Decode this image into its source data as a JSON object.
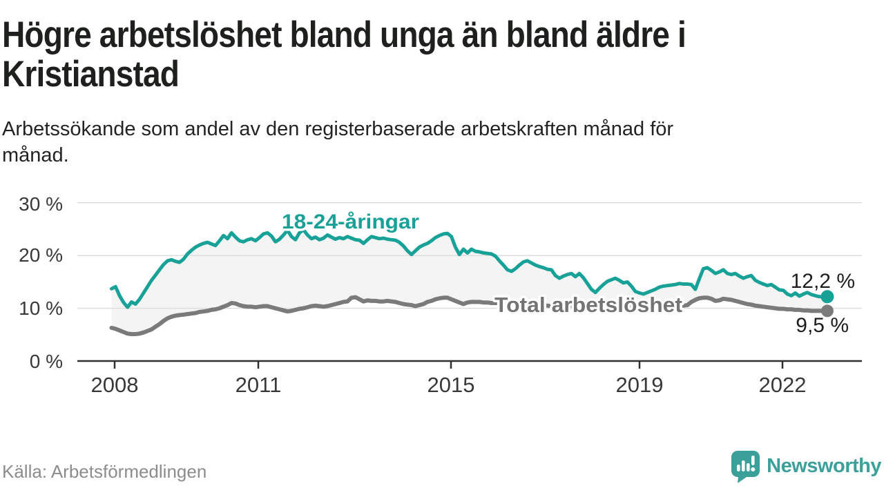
{
  "page": {
    "title": {
      "line1": "Högre arbetslöshet bland unga än bland äldre i",
      "line2": "Kristianstad"
    },
    "subtitle": {
      "line1": "Arbetssökande som andel av den registerbaserade arbetskraften månad för",
      "line2": "månad."
    },
    "source": "Källa: Arbetsförmedlingen",
    "brand": {
      "name": "Newsworthy",
      "color": "#3ba09a"
    }
  },
  "chart_data": {
    "type": "line",
    "title": "Högre arbetslöshet bland unga än bland äldre i Kristianstad",
    "subtitle": "Arbetssökande som andel av den registerbaserade arbetskraften månad för månad.",
    "x_unit": "month",
    "x_start": "2008-01",
    "x_end": "2022-12",
    "ylim": [
      0,
      32
    ],
    "y_ticks": [
      0,
      10,
      20,
      30
    ],
    "y_tick_labels": [
      "0 %",
      "10 %",
      "20 %",
      "30 %"
    ],
    "x_ticks": [
      2008,
      2011,
      2015,
      2019,
      2022
    ],
    "x_tick_labels": [
      "2008",
      "2011",
      "2015",
      "2019",
      "2022"
    ],
    "grid": "horizontal",
    "legend": "inline-labels",
    "colors": {
      "youth": "#17a197",
      "total": "#7a7a7a",
      "band_fill": "#f4f4f4",
      "gridline": "#dedede",
      "axis": "#2e2e2e",
      "annotation": "#1d1d1d"
    },
    "series": [
      {
        "id": "youth",
        "name": "18-24-åringar",
        "end_label": "12,2 %",
        "end_value": 12.2,
        "color": "#17a197",
        "values": [
          13.7,
          14.1,
          12.4,
          11.1,
          10.2,
          11.2,
          10.8,
          11.7,
          12.9,
          14.1,
          15.3,
          16.3,
          17.3,
          18.3,
          19.0,
          19.2,
          18.9,
          18.7,
          19.3,
          20.3,
          21.0,
          21.6,
          22.0,
          22.3,
          22.5,
          22.2,
          21.9,
          22.8,
          23.8,
          23.2,
          24.3,
          23.5,
          22.8,
          22.6,
          23.0,
          23.2,
          22.8,
          23.4,
          24.1,
          24.3,
          23.7,
          22.6,
          23.1,
          23.9,
          24.8,
          23.6,
          23.0,
          24.3,
          24.9,
          23.9,
          23.2,
          23.5,
          23.0,
          23.3,
          23.9,
          23.5,
          23.1,
          23.4,
          23.2,
          23.6,
          23.3,
          23.0,
          22.9,
          22.3,
          23.0,
          23.6,
          23.4,
          23.2,
          23.3,
          23.1,
          23.0,
          22.9,
          22.5,
          21.8,
          20.9,
          20.2,
          20.9,
          21.6,
          22.0,
          22.3,
          22.8,
          23.4,
          23.8,
          24.1,
          24.2,
          23.6,
          21.6,
          20.2,
          21.2,
          20.5,
          21.2,
          20.8,
          20.7,
          20.5,
          20.4,
          20.3,
          19.9,
          19.0,
          18.2,
          17.3,
          17.0,
          17.5,
          18.2,
          18.8,
          19.0,
          18.6,
          18.2,
          17.9,
          17.7,
          17.4,
          17.3,
          16.2,
          15.7,
          16.1,
          16.4,
          16.6,
          16.0,
          16.6,
          15.8,
          14.7,
          13.6,
          13.0,
          13.8,
          14.5,
          15.1,
          15.4,
          15.7,
          15.3,
          14.8,
          15.0,
          14.2,
          13.2,
          12.9,
          12.7,
          13.0,
          13.3,
          13.6,
          14.0,
          14.2,
          14.3,
          14.4,
          14.5,
          14.7,
          14.6,
          14.6,
          14.5,
          13.6,
          15.6,
          17.5,
          17.7,
          17.2,
          16.6,
          16.9,
          17.3,
          16.6,
          16.4,
          16.6,
          16.1,
          15.7,
          16.0,
          16.2,
          15.3,
          14.9,
          14.6,
          14.3,
          14.5,
          14.0,
          13.5,
          13.4,
          12.7,
          12.4,
          12.9,
          12.3,
          12.7,
          13.0,
          12.6,
          12.4,
          12.2,
          12.2,
          12.2
        ]
      },
      {
        "id": "total",
        "name": "Total arbetslöshet",
        "end_label": "9,5 %",
        "end_value": 9.5,
        "color": "#7a7a7a",
        "values": [
          6.3,
          6.1,
          5.8,
          5.5,
          5.2,
          5.1,
          5.1,
          5.2,
          5.4,
          5.7,
          6.0,
          6.5,
          7.0,
          7.6,
          8.1,
          8.4,
          8.6,
          8.7,
          8.8,
          8.9,
          9.0,
          9.1,
          9.3,
          9.4,
          9.5,
          9.7,
          9.8,
          10.0,
          10.3,
          10.6,
          11.0,
          10.9,
          10.6,
          10.4,
          10.3,
          10.3,
          10.2,
          10.3,
          10.4,
          10.4,
          10.2,
          10.0,
          9.8,
          9.6,
          9.4,
          9.5,
          9.7,
          9.9,
          10.0,
          10.2,
          10.4,
          10.5,
          10.4,
          10.3,
          10.4,
          10.6,
          10.8,
          11.0,
          11.2,
          11.3,
          12.0,
          12.1,
          11.7,
          11.3,
          11.5,
          11.4,
          11.4,
          11.3,
          11.3,
          11.4,
          11.3,
          11.2,
          11.0,
          10.8,
          10.7,
          10.6,
          10.4,
          10.6,
          10.8,
          11.2,
          11.4,
          11.7,
          11.9,
          12.0,
          12.0,
          11.7,
          11.4,
          11.1,
          10.8,
          11.1,
          11.2,
          11.2,
          11.2,
          11.1,
          11.1,
          11.0,
          11.0,
          11.0,
          10.9,
          10.9,
          10.8,
          10.8,
          10.8,
          10.7,
          10.7,
          10.6,
          10.6,
          10.5,
          10.5,
          10.5,
          10.4,
          10.4,
          10.3,
          10.3,
          10.3,
          10.4,
          10.4,
          10.3,
          10.3,
          10.4,
          10.4,
          10.3,
          10.3,
          10.2,
          10.2,
          10.3,
          10.4,
          10.4,
          10.3,
          10.3,
          10.2,
          10.2,
          10.2,
          10.1,
          10.2,
          10.2,
          10.3,
          10.3,
          10.4,
          10.4,
          10.3,
          10.4,
          10.4,
          10.5,
          10.6,
          11.2,
          11.6,
          11.9,
          12.0,
          12.0,
          11.8,
          11.4,
          11.5,
          11.8,
          11.7,
          11.6,
          11.4,
          11.2,
          11.0,
          10.8,
          10.7,
          10.5,
          10.4,
          10.3,
          10.2,
          10.1,
          10.0,
          9.9,
          9.9,
          9.8,
          9.8,
          9.7,
          9.7,
          9.6,
          9.6,
          9.5,
          9.5,
          9.5,
          9.5,
          9.5
        ]
      }
    ]
  }
}
